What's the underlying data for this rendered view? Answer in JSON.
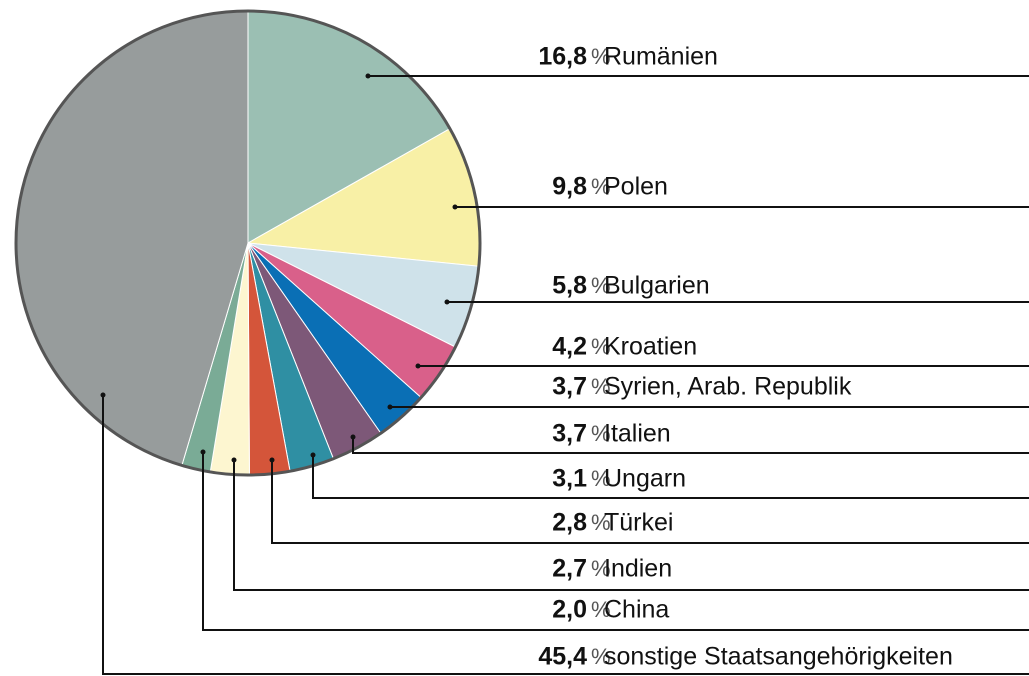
{
  "chart_data": {
    "type": "pie",
    "unit": "%",
    "categories": [
      "Rumänien",
      "Polen",
      "Bulgarien",
      "Kroatien",
      "Syrien, Arab. Republik",
      "Italien",
      "Ungarn",
      "Türkei",
      "Indien",
      "China",
      "sonstige Staatsangehörigkeiten"
    ],
    "values": [
      16.8,
      9.8,
      5.8,
      4.2,
      3.7,
      3.7,
      3.1,
      2.8,
      2.7,
      2.0,
      45.4
    ],
    "value_labels": [
      "16,8",
      "9,8",
      "5,8",
      "4,2",
      "3,7",
      "3,7",
      "3,1",
      "2,8",
      "2,7",
      "2,0",
      "45,4"
    ],
    "colors": [
      "#9bbfb3",
      "#f8f0a6",
      "#cfe2ea",
      "#d9608a",
      "#0a6fb5",
      "#7d5878",
      "#2f8fa3",
      "#d4553a",
      "#fdf6d0",
      "#7aab96",
      "#979c9c"
    ]
  }
}
